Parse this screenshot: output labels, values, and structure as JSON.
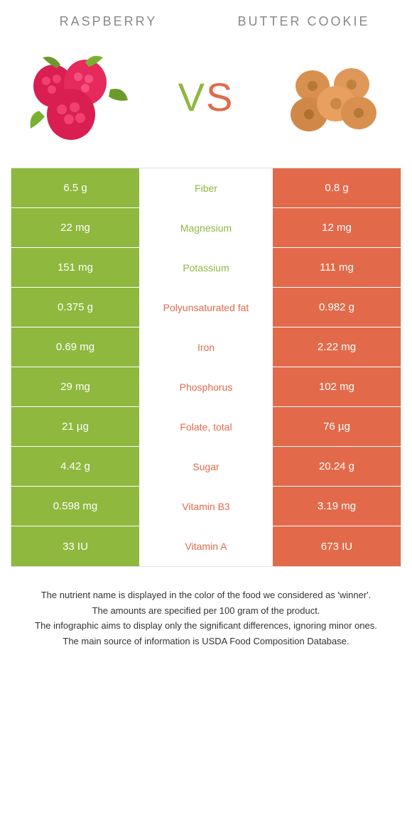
{
  "foods": {
    "left": {
      "name": "RASPBERRY",
      "color": "#8fb83e"
    },
    "right": {
      "name": "BUTTER COOKIE",
      "color": "#e26a4a"
    }
  },
  "vs": {
    "v": "V",
    "s": "S"
  },
  "colors": {
    "green": "#8fb83e",
    "orange": "#e26a4a",
    "white": "#ffffff",
    "midtext_green": "#8fb83e",
    "midtext_orange": "#e26a4a"
  },
  "rows": [
    {
      "left": "6.5 g",
      "label": "Fiber",
      "right": "0.8 g",
      "winner": "left"
    },
    {
      "left": "22 mg",
      "label": "Magnesium",
      "right": "12 mg",
      "winner": "left"
    },
    {
      "left": "151 mg",
      "label": "Potassium",
      "right": "111 mg",
      "winner": "left"
    },
    {
      "left": "0.375 g",
      "label": "Polyunsaturated fat",
      "right": "0.982 g",
      "winner": "right"
    },
    {
      "left": "0.69 mg",
      "label": "Iron",
      "right": "2.22 mg",
      "winner": "right"
    },
    {
      "left": "29 mg",
      "label": "Phosphorus",
      "right": "102 mg",
      "winner": "right"
    },
    {
      "left": "21 µg",
      "label": "Folate, total",
      "right": "76 µg",
      "winner": "right"
    },
    {
      "left": "4.42 g",
      "label": "Sugar",
      "right": "20.24 g",
      "winner": "right"
    },
    {
      "left": "0.598 mg",
      "label": "Vitamin B3",
      "right": "3.19 mg",
      "winner": "right"
    },
    {
      "left": "33 IU",
      "label": "Vitamin A",
      "right": "673 IU",
      "winner": "right"
    }
  ],
  "footnotes": [
    "The nutrient name is displayed in the color of the food we considered as 'winner'.",
    "The amounts are specified per 100 gram of the product.",
    "The infographic aims to display only the significant differences, ignoring minor ones.",
    "The main source of information is USDA Food Composition Database."
  ]
}
